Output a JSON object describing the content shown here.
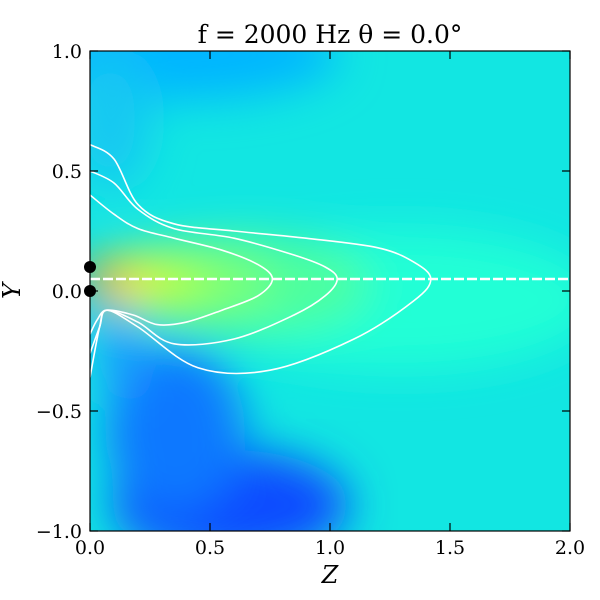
{
  "chart_data": {
    "type": "heatmap",
    "title": "f = 2000 Hz    θ = 0.0°",
    "xlabel": "Z",
    "ylabel": "Y",
    "xlim": [
      0.0,
      2.0
    ],
    "ylim": [
      -1.0,
      1.0
    ],
    "xticks": [
      "0.0",
      "0.5",
      "1.0",
      "1.5",
      "2.0"
    ],
    "yticks": [
      "1.0",
      "0.5",
      "0.0",
      "−0.5",
      "−1.0"
    ],
    "xtick_values": [
      0.0,
      0.5,
      1.0,
      1.5,
      2.0
    ],
    "ytick_values": [
      1.0,
      0.5,
      0.0,
      -0.5,
      -1.0
    ],
    "colormap": "jet",
    "contour_color": "#ffffff",
    "sources": [
      {
        "z": 0.0,
        "y": 0.1
      },
      {
        "z": 0.0,
        "y": 0.0
      }
    ],
    "axis_line_y": 0.05,
    "contours": [
      {
        "points": [
          [
            0.0,
            0.61
          ],
          [
            0.1,
            0.55
          ],
          [
            0.2,
            0.36
          ],
          [
            0.35,
            0.28
          ],
          [
            0.6,
            0.25
          ],
          [
            0.9,
            0.22
          ],
          [
            1.2,
            0.18
          ],
          [
            1.35,
            0.12
          ],
          [
            1.42,
            0.05
          ],
          [
            1.35,
            -0.04
          ],
          [
            1.1,
            -0.2
          ],
          [
            0.75,
            -0.33
          ],
          [
            0.45,
            -0.32
          ],
          [
            0.2,
            -0.15
          ],
          [
            0.07,
            -0.08
          ],
          [
            0.04,
            -0.15
          ],
          [
            0.0,
            -0.36
          ]
        ]
      },
      {
        "points": [
          [
            0.0,
            0.5
          ],
          [
            0.1,
            0.45
          ],
          [
            0.2,
            0.34
          ],
          [
            0.35,
            0.26
          ],
          [
            0.6,
            0.22
          ],
          [
            0.85,
            0.15
          ],
          [
            0.98,
            0.1
          ],
          [
            1.03,
            0.05
          ],
          [
            0.98,
            -0.02
          ],
          [
            0.85,
            -0.1
          ],
          [
            0.6,
            -0.2
          ],
          [
            0.35,
            -0.22
          ],
          [
            0.2,
            -0.13
          ],
          [
            0.07,
            -0.08
          ],
          [
            0.04,
            -0.15
          ],
          [
            0.0,
            -0.26
          ]
        ]
      },
      {
        "points": [
          [
            0.0,
            0.4
          ],
          [
            0.1,
            0.32
          ],
          [
            0.2,
            0.26
          ],
          [
            0.35,
            0.22
          ],
          [
            0.55,
            0.17
          ],
          [
            0.7,
            0.11
          ],
          [
            0.76,
            0.05
          ],
          [
            0.7,
            -0.02
          ],
          [
            0.55,
            -0.08
          ],
          [
            0.4,
            -0.13
          ],
          [
            0.28,
            -0.14
          ],
          [
            0.18,
            -0.1
          ],
          [
            0.07,
            -0.08
          ],
          [
            0.03,
            -0.12
          ],
          [
            0.0,
            -0.18
          ]
        ]
      }
    ]
  }
}
